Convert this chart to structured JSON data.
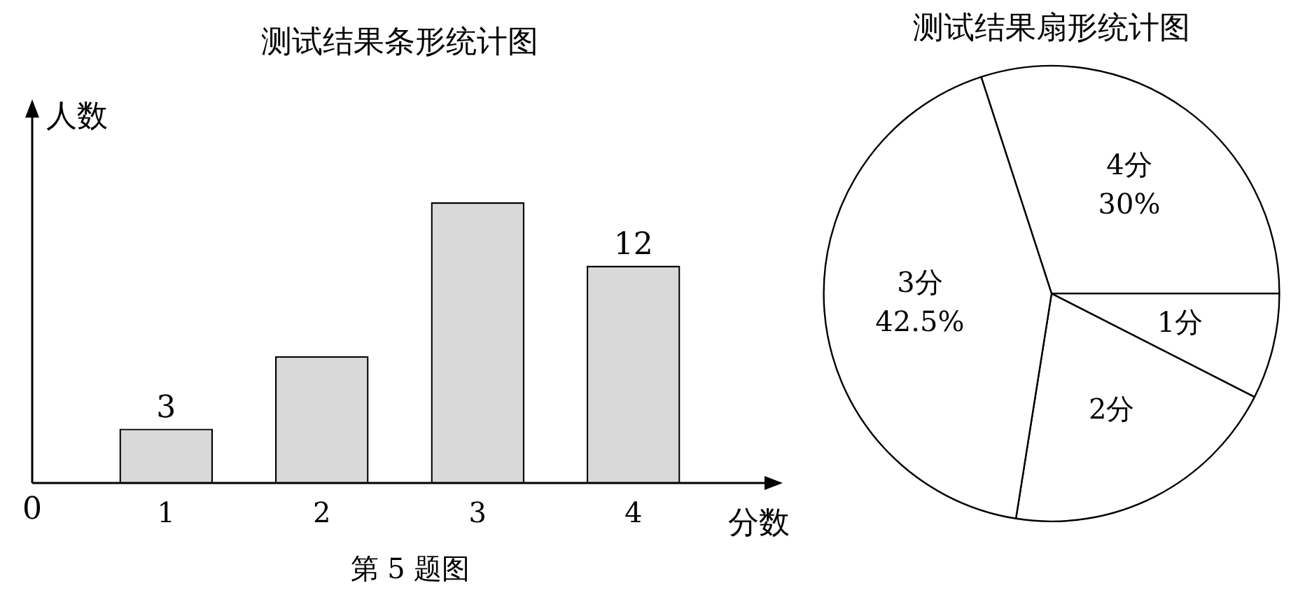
{
  "chart_data": [
    {
      "type": "bar",
      "title": "测试结果条形统计图",
      "xlabel": "分数",
      "ylabel": "人数",
      "categories": [
        "1",
        "2",
        "3",
        "4"
      ],
      "values": [
        3,
        7,
        15.5,
        12
      ],
      "tick_labels": "x",
      "value_labels": [
        "3",
        null,
        null,
        "12"
      ],
      "color": "#d9d9d9",
      "annotations": [
        "0",
        "第 5 题图"
      ]
    },
    {
      "type": "pie",
      "title": "测试结果扇形统计图",
      "categories": [
        "4分",
        "1分",
        "2分",
        "3分"
      ],
      "values": [
        30,
        7.5,
        20,
        42.5
      ],
      "value_labels": [
        "30%",
        null,
        null,
        "42.5%"
      ],
      "colors": [
        "#ffffff",
        "#ffffff",
        "#ffffff",
        "#ffffff"
      ]
    }
  ]
}
